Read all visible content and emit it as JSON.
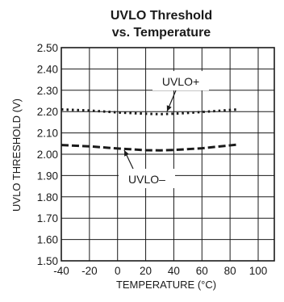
{
  "chart_data": {
    "type": "line",
    "title": [
      "UVLO Threshold",
      "vs. Temperature"
    ],
    "xlabel": "TEMPERATURE (°C)",
    "ylabel": "UVLO THRESHOLD (V)",
    "xlim": [
      -40,
      100
    ],
    "ylim": [
      1.5,
      2.5
    ],
    "xticks": [
      -40,
      -20,
      0,
      20,
      40,
      60,
      80,
      100
    ],
    "xtick_labels": [
      "-40",
      "-20",
      "0",
      "20",
      "40",
      "60",
      "80",
      "100"
    ],
    "yticks": [
      1.5,
      1.6,
      1.7,
      1.8,
      1.9,
      2.0,
      2.1,
      2.2,
      2.3,
      2.4,
      2.5
    ],
    "ytick_labels": [
      "1.50",
      "1.60",
      "1.70",
      "1.80",
      "1.90",
      "2.00",
      "2.10",
      "2.20",
      "2.30",
      "2.40",
      "2.50"
    ],
    "grid": true,
    "series": [
      {
        "name": "UVLO+",
        "style": "dotted",
        "x": [
          -40,
          -20,
          0,
          20,
          30,
          40,
          60,
          85
        ],
        "y": [
          2.21,
          2.205,
          2.196,
          2.19,
          2.188,
          2.19,
          2.198,
          2.21
        ]
      },
      {
        "name": "UVLO–",
        "style": "dashed",
        "x": [
          -40,
          -20,
          0,
          20,
          30,
          40,
          60,
          85
        ],
        "y": [
          2.043,
          2.037,
          2.027,
          2.019,
          2.018,
          2.02,
          2.028,
          2.045
        ]
      }
    ]
  },
  "colors": {
    "line": "#1a1a1a",
    "grid": "#1a1a1a"
  }
}
